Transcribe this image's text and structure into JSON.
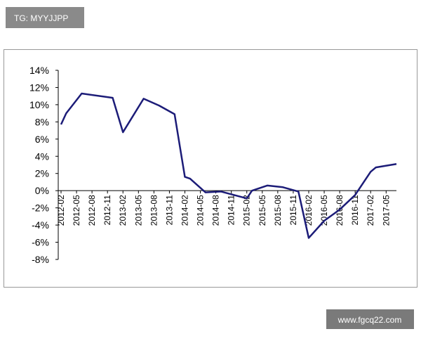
{
  "watermarks": [
    "TG: MYYJJPP",
    "www.fgcq22.com"
  ],
  "chart_data": {
    "type": "line",
    "x": [
      "2012-02",
      "2012-03",
      "2012-06",
      "2012-12",
      "2013-02",
      "2013-06",
      "2013-09",
      "2013-12",
      "2014-02",
      "2014-03",
      "2014-06",
      "2014-09",
      "2015-02",
      "2015-03",
      "2015-06",
      "2015-09",
      "2015-12",
      "2016-02",
      "2016-05",
      "2016-08",
      "2016-11",
      "2017-02",
      "2017-03",
      "2017-07"
    ],
    "series": [
      {
        "color": "#1c1c78",
        "values": [
          7.7,
          9.0,
          11.3,
          10.8,
          6.8,
          10.7,
          9.9,
          8.9,
          1.6,
          1.4,
          -0.2,
          -0.1,
          -0.9,
          0.0,
          0.6,
          0.4,
          -0.1,
          -5.5,
          -3.5,
          -2.2,
          -0.5,
          2.2,
          2.7,
          3.1
        ]
      }
    ],
    "xlim": [
      "2012-02",
      "2017-07"
    ],
    "xticks": [
      "2012-02",
      "2012-05",
      "2012-08",
      "2012-11",
      "2013-02",
      "2013-05",
      "2013-08",
      "2013-11",
      "2014-02",
      "2014-05",
      "2014-08",
      "2014-11",
      "2015-02",
      "2015-05",
      "2015-08",
      "2015-11",
      "2016-02",
      "2016-05",
      "2016-08",
      "2016-11",
      "2017-02",
      "2017-05"
    ],
    "ylim": [
      -8,
      14
    ],
    "yticks": [
      {
        "value": -8,
        "label": "-8%"
      },
      {
        "value": -6,
        "label": "-6%"
      },
      {
        "value": -4,
        "label": "-4%"
      },
      {
        "value": -2,
        "label": "-2%"
      },
      {
        "value": 0,
        "label": "0%"
      },
      {
        "value": 2,
        "label": "2%"
      },
      {
        "value": 4,
        "label": "4%"
      },
      {
        "value": 6,
        "label": "6%"
      },
      {
        "value": 8,
        "label": "8%"
      },
      {
        "value": 10,
        "label": "10%"
      },
      {
        "value": 12,
        "label": "12%"
      },
      {
        "value": 14,
        "label": "14%"
      }
    ]
  }
}
